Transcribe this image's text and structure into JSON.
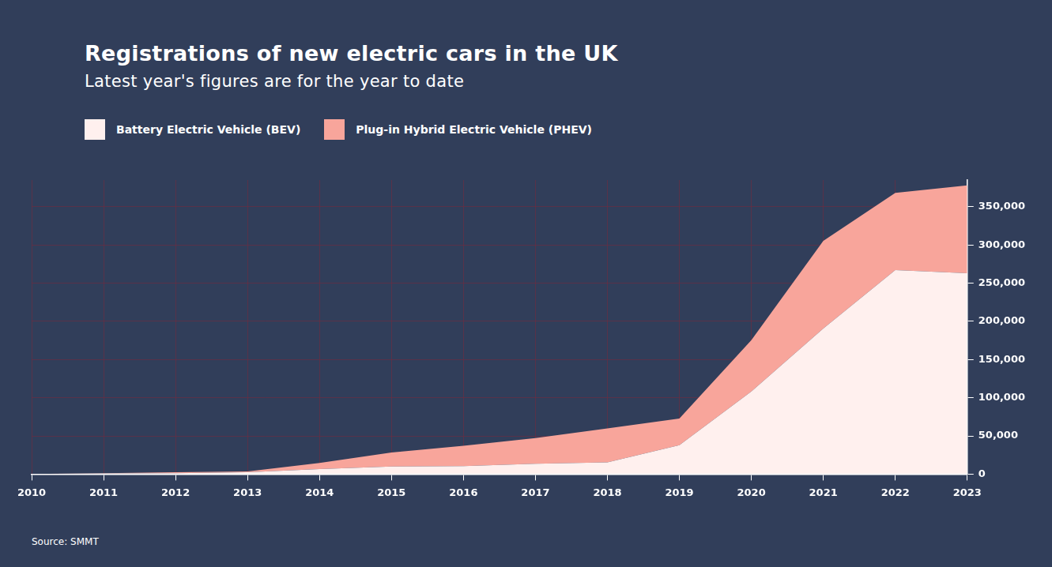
{
  "chart_data": {
    "type": "area",
    "title": "Registrations of new electric cars in the UK",
    "subtitle": "Latest year's figures are for the year to date",
    "source": "Source: SMMT",
    "categories": [
      "2010",
      "2011",
      "2012",
      "2013",
      "2014",
      "2015",
      "2016",
      "2017",
      "2018",
      "2019",
      "2020",
      "2021",
      "2022",
      "2023"
    ],
    "series": [
      {
        "name": "Battery Electric Vehicle (BEV)",
        "color": "#fff0ee",
        "values": [
          150,
          1000,
          1300,
          2500,
          6700,
          9900,
          10500,
          13600,
          15500,
          37800,
          108200,
          190700,
          267200,
          263000
        ]
      },
      {
        "name": "Plug-in Hybrid Electric Vehicle (PHEV)",
        "color": "#f8a59b",
        "values": [
          0,
          100,
          1200,
          1100,
          7800,
          18300,
          26600,
          33700,
          44400,
          35000,
          67100,
          114600,
          101100,
          115000
        ]
      }
    ],
    "stacked": true,
    "ylim": [
      0,
      385000
    ],
    "yticks": [
      0,
      {
        "value": 50000,
        "label": "50,000"
      },
      {
        "value": 100000,
        "label": "100,000"
      },
      {
        "value": 150000,
        "label": "150,000"
      },
      {
        "value": 200000,
        "label": "200,000"
      },
      {
        "value": 250000,
        "label": "250,000"
      },
      {
        "value": 300000,
        "label": "300,000"
      },
      {
        "value": 350000,
        "label": "350,000"
      }
    ],
    "grid": true,
    "legend": "top-left"
  }
}
